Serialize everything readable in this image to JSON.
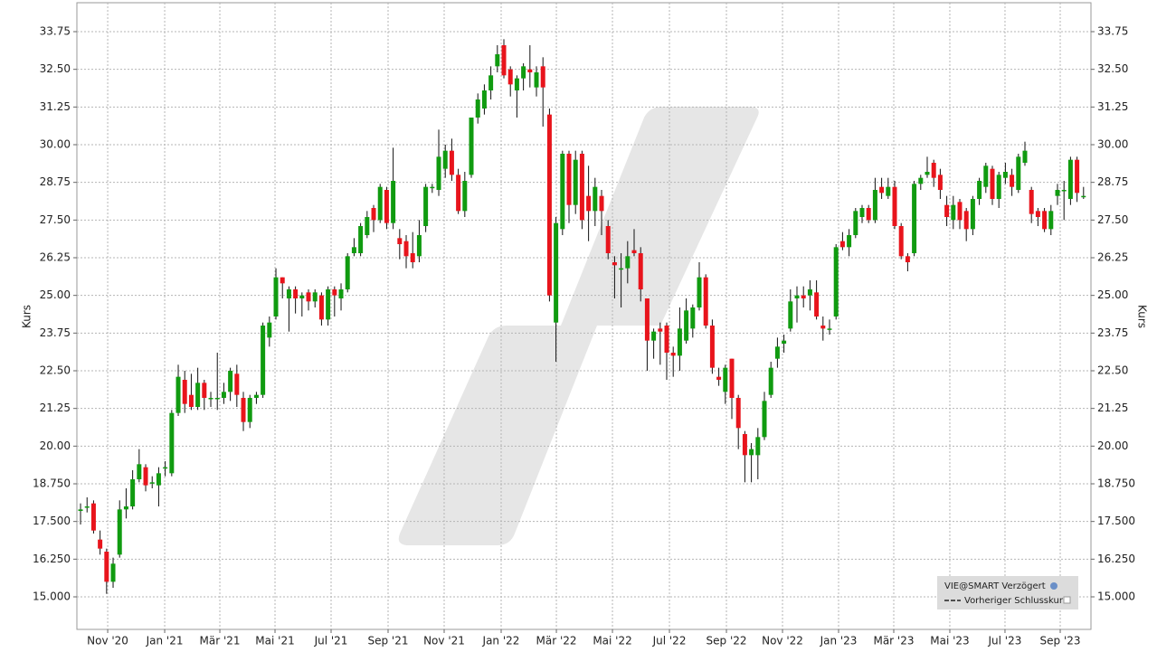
{
  "chart_data": {
    "type": "candlestick",
    "y_label": "Kurs",
    "legend_items": [
      "VIE@SMART Verzögert",
      "Vorheriger Schlusskurs"
    ],
    "up_color": "#109b10",
    "down_color": "#e8141c",
    "grid": true,
    "xlim": [
      -0.56,
      155.14
    ],
    "xticks": [
      {
        "value": 4.17,
        "label": "Nov '20"
      },
      {
        "value": 12.92,
        "label": "Jan '21"
      },
      {
        "value": 21.39,
        "label": "Mär '21"
      },
      {
        "value": 29.86,
        "label": "Mai '21"
      },
      {
        "value": 38.47,
        "label": "Jul '21"
      },
      {
        "value": 47.22,
        "label": "Sep '21"
      },
      {
        "value": 55.83,
        "label": "Nov '21"
      },
      {
        "value": 64.58,
        "label": "Jan '22"
      },
      {
        "value": 73.06,
        "label": "Mär '22"
      },
      {
        "value": 81.67,
        "label": "Mai '22"
      },
      {
        "value": 90.42,
        "label": "Jul '22"
      },
      {
        "value": 99.17,
        "label": "Sep '22"
      },
      {
        "value": 107.78,
        "label": "Nov '22"
      },
      {
        "value": 116.39,
        "label": "Jan '23"
      },
      {
        "value": 124.86,
        "label": "Mär '23"
      },
      {
        "value": 133.47,
        "label": "Mai '23"
      },
      {
        "value": 141.94,
        "label": "Jul '23"
      },
      {
        "value": 150.42,
        "label": "Sep '23"
      }
    ],
    "ylim": [
      13.92,
      34.71
    ],
    "yticks": [
      {
        "value": 15,
        "label": "15.000"
      },
      {
        "value": 16.25,
        "label": "16.250"
      },
      {
        "value": 17.5,
        "label": "17.500"
      },
      {
        "value": 18.75,
        "label": "18.750"
      },
      {
        "value": 20,
        "label": "20.00"
      },
      {
        "value": 21.25,
        "label": "21.25"
      },
      {
        "value": 22.5,
        "label": "22.50"
      },
      {
        "value": 23.75,
        "label": "23.75"
      },
      {
        "value": 25,
        "label": "25.00"
      },
      {
        "value": 26.25,
        "label": "26.25"
      },
      {
        "value": 27.5,
        "label": "27.50"
      },
      {
        "value": 28.75,
        "label": "28.75"
      },
      {
        "value": 30,
        "label": "30.00"
      },
      {
        "value": 31.25,
        "label": "31.25"
      },
      {
        "value": 32.5,
        "label": "32.50"
      },
      33.75
    ],
    "open": [
      17.85,
      18.0,
      18.1,
      16.9,
      16.5,
      15.5,
      16.4,
      17.9,
      18.0,
      18.9,
      19.3,
      18.8,
      18.7,
      19.3,
      19.1,
      21.1,
      22.2,
      21.7,
      21.3,
      22.1,
      21.6,
      21.6,
      21.6,
      21.8,
      22.4,
      21.6,
      20.8,
      21.6,
      21.7,
      23.6,
      24.3,
      25.6,
      24.9,
      25.2,
      24.9,
      25.1,
      24.8,
      25.0,
      24.2,
      25.2,
      24.9,
      25.2,
      26.4,
      26.4,
      27.0,
      27.9,
      27.5,
      28.5,
      27.4,
      26.9,
      26.8,
      26.4,
      26.3,
      27.3,
      28.6,
      28.5,
      29.2,
      29.8,
      29.0,
      27.8,
      29.0,
      30.9,
      31.2,
      31.8,
      32.6,
      33.3,
      32.5,
      31.8,
      32.2,
      32.5,
      31.9,
      32.6,
      31.0,
      24.1,
      27.2,
      29.7,
      28.0,
      29.7,
      28.3,
      27.8,
      28.3,
      27.3,
      26.1,
      25.9,
      25.9,
      26.5,
      26.4,
      24.9,
      23.5,
      23.9,
      24.0,
      23.1,
      23.0,
      23.5,
      23.9,
      24.6,
      25.6,
      24.0,
      22.3,
      21.8,
      22.9,
      21.6,
      20.4,
      19.7,
      19.7,
      20.3,
      21.7,
      22.9,
      23.4,
      23.9,
      24.9,
      25.0,
      25.0,
      25.1,
      24.0,
      23.9,
      24.3,
      26.8,
      26.6,
      27.0,
      27.6,
      27.9,
      27.5,
      28.6,
      28.3,
      28.6,
      27.3,
      26.3,
      26.4,
      28.7,
      29.0,
      29.4,
      29.0,
      28.0,
      27.5,
      28.1,
      27.8,
      27.2,
      28.2,
      28.6,
      29.2,
      28.2,
      28.9,
      29.0,
      28.5,
      29.4,
      28.5,
      27.8,
      27.8,
      27.2,
      28.3,
      28.5,
      28.2,
      29.5,
      28.3
    ],
    "close": [
      17.9,
      18.0,
      17.2,
      16.6,
      15.5,
      16.1,
      17.9,
      18.0,
      18.9,
      19.4,
      18.7,
      18.8,
      19.1,
      19.3,
      21.1,
      22.3,
      21.4,
      21.3,
      22.1,
      21.6,
      21.6,
      21.6,
      21.8,
      22.5,
      21.7,
      20.8,
      21.6,
      21.7,
      24.0,
      24.1,
      25.6,
      25.4,
      25.2,
      24.9,
      25.0,
      24.8,
      25.1,
      24.2,
      25.2,
      25.0,
      25.2,
      26.3,
      26.6,
      27.3,
      27.6,
      27.5,
      28.6,
      27.4,
      28.8,
      26.7,
      26.3,
      26.1,
      27.0,
      28.6,
      28.6,
      29.6,
      29.8,
      29.0,
      27.8,
      28.8,
      30.9,
      31.5,
      31.8,
      32.3,
      33.0,
      32.3,
      32.0,
      32.2,
      32.6,
      32.4,
      32.4,
      31.9,
      25.0,
      27.4,
      29.7,
      28.0,
      29.5,
      27.5,
      27.8,
      28.6,
      27.8,
      26.4,
      26.0,
      25.9,
      26.3,
      26.4,
      25.2,
      23.5,
      23.8,
      23.8,
      23.1,
      23.0,
      23.9,
      24.5,
      24.6,
      25.6,
      24.0,
      22.6,
      22.2,
      22.6,
      21.6,
      20.6,
      19.7,
      19.9,
      20.3,
      21.5,
      22.6,
      23.3,
      23.5,
      24.8,
      25.0,
      24.9,
      25.2,
      24.3,
      23.9,
      23.9,
      26.6,
      26.6,
      27.0,
      27.8,
      27.9,
      27.5,
      28.5,
      28.4,
      28.6,
      27.3,
      26.3,
      26.1,
      28.7,
      28.9,
      29.1,
      28.9,
      28.5,
      27.6,
      28.0,
      27.5,
      27.2,
      28.2,
      28.8,
      29.3,
      28.2,
      29.0,
      29.1,
      28.6,
      29.6,
      29.8,
      27.7,
      27.6,
      27.2,
      27.8,
      28.5,
      28.5,
      29.5,
      28.4,
      28.3
    ],
    "high": [
      18.1,
      18.3,
      18.2,
      17.2,
      16.6,
      16.3,
      18.2,
      18.6,
      19.2,
      19.9,
      19.4,
      19.0,
      19.3,
      19.5,
      21.2,
      22.7,
      22.5,
      22.4,
      22.6,
      22.2,
      21.8,
      23.1,
      22.1,
      22.6,
      22.7,
      21.8,
      21.7,
      21.8,
      24.1,
      24.3,
      25.9,
      25.6,
      25.3,
      25.3,
      25.1,
      25.2,
      25.2,
      25.1,
      25.3,
      25.3,
      25.4,
      26.4,
      26.9,
      27.4,
      27.8,
      28.0,
      28.7,
      28.6,
      29.9,
      27.2,
      27.0,
      27.1,
      27.5,
      28.7,
      28.7,
      30.5,
      30.0,
      30.2,
      29.2,
      29.1,
      30.9,
      31.7,
      32.0,
      32.6,
      33.3,
      33.5,
      32.6,
      32.3,
      32.7,
      33.3,
      32.6,
      32.9,
      31.2,
      27.6,
      29.8,
      29.8,
      29.8,
      29.8,
      29.3,
      28.9,
      28.5,
      27.5,
      26.3,
      26.4,
      26.8,
      27.2,
      26.6,
      24.9,
      23.9,
      24.1,
      24.1,
      23.3,
      24.6,
      24.9,
      24.7,
      26.1,
      25.7,
      24.2,
      22.6,
      22.7,
      22.9,
      21.7,
      20.5,
      20.1,
      20.6,
      21.8,
      22.8,
      23.6,
      23.7,
      25.2,
      25.3,
      25.3,
      25.5,
      25.5,
      24.3,
      24.2,
      26.7,
      27.1,
      27.2,
      27.9,
      28.0,
      28.0,
      28.9,
      28.9,
      28.9,
      28.8,
      27.4,
      26.4,
      28.8,
      29.0,
      29.6,
      29.5,
      29.2,
      28.3,
      28.3,
      28.2,
      27.9,
      28.3,
      28.9,
      29.4,
      29.3,
      29.1,
      29.4,
      29.2,
      29.7,
      30.1,
      28.6,
      27.9,
      27.9,
      28.0,
      28.7,
      28.8,
      29.6,
      29.6,
      28.6
    ],
    "low": [
      17.4,
      17.8,
      17.1,
      16.4,
      15.1,
      15.3,
      16.3,
      17.6,
      17.9,
      18.8,
      18.5,
      18.6,
      18.0,
      19.0,
      19.0,
      21.0,
      21.1,
      21.2,
      21.2,
      21.2,
      21.3,
      21.2,
      21.4,
      21.5,
      21.3,
      20.5,
      20.6,
      21.4,
      21.6,
      23.3,
      24.2,
      24.9,
      23.8,
      24.4,
      24.3,
      24.5,
      24.6,
      24.0,
      24.0,
      24.3,
      24.5,
      25.1,
      26.3,
      26.3,
      26.9,
      27.1,
      27.4,
      27.2,
      27.2,
      26.2,
      25.9,
      25.9,
      26.1,
      27.1,
      28.4,
      28.3,
      28.9,
      28.8,
      27.7,
      27.6,
      28.9,
      30.7,
      31.0,
      31.5,
      32.4,
      32.2,
      31.6,
      30.9,
      31.8,
      31.9,
      31.6,
      30.6,
      24.8,
      22.8,
      27.0,
      27.4,
      27.7,
      27.2,
      26.8,
      27.3,
      27.0,
      26.2,
      24.9,
      24.6,
      25.4,
      26.3,
      24.8,
      22.5,
      22.9,
      22.7,
      22.2,
      22.3,
      22.5,
      23.4,
      23.6,
      24.5,
      23.9,
      22.4,
      22.0,
      21.4,
      20.9,
      19.9,
      18.8,
      18.8,
      18.9,
      20.2,
      21.6,
      22.6,
      23.1,
      23.8,
      24.1,
      24.6,
      24.5,
      24.2,
      23.5,
      23.7,
      24.2,
      26.5,
      26.3,
      26.9,
      27.4,
      27.4,
      27.4,
      28.2,
      28.2,
      27.2,
      26.2,
      25.8,
      26.3,
      28.5,
      28.9,
      28.6,
      28.2,
      27.3,
      27.2,
      27.2,
      26.8,
      27.0,
      28.0,
      28.4,
      28.0,
      27.9,
      28.7,
      28.3,
      28.4,
      29.3,
      27.4,
      27.3,
      27.1,
      27.0,
      28.0,
      27.5,
      28.0,
      28.1,
      28.2
    ]
  }
}
